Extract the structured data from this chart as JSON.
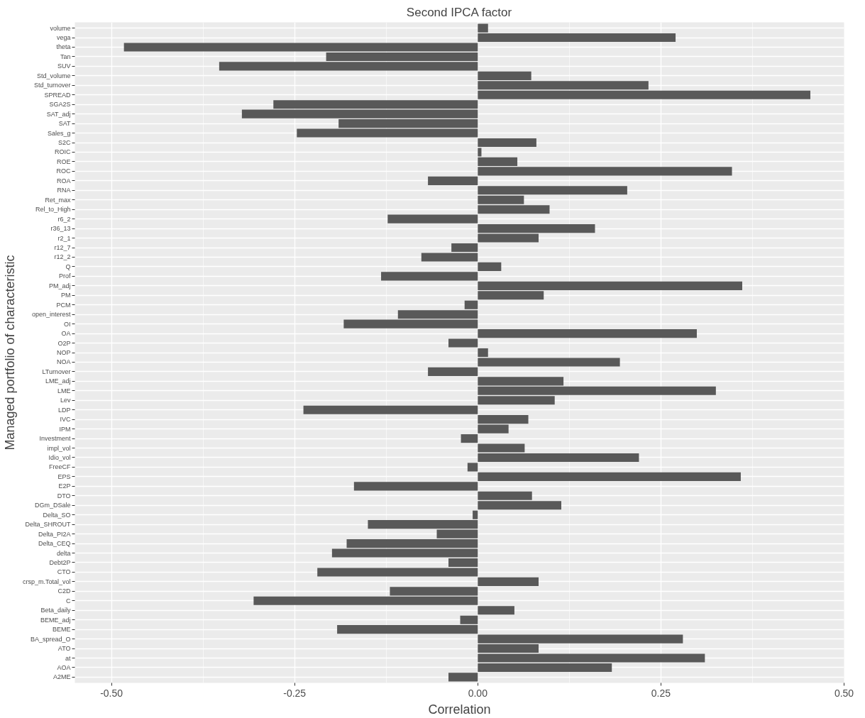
{
  "chart_data": {
    "type": "bar",
    "orientation": "horizontal",
    "title": "Second IPCA factor",
    "xlabel": "Correlation",
    "ylabel": "Managed portfolio of characteristic",
    "categories": [
      "volume",
      "vega",
      "theta",
      "Tan",
      "SUV",
      "Std_volume",
      "Std_turnover",
      "SPREAD",
      "SGA2S",
      "SAT_adj",
      "SAT",
      "Sales_g",
      "S2C",
      "ROIC",
      "ROE",
      "ROC",
      "ROA",
      "RNA",
      "Ret_max",
      "Rel_to_High",
      "r6_2",
      "r36_13",
      "r2_1",
      "r12_7",
      "r12_2",
      "Q",
      "Prof",
      "PM_adj",
      "PM",
      "PCM",
      "open_interest",
      "OI",
      "OA",
      "O2P",
      "NOP",
      "NOA",
      "LTurnover",
      "LME_adj",
      "LME",
      "Lev",
      "LDP",
      "IVC",
      "IPM",
      "Investment",
      "impl_vol",
      "Idio_vol",
      "FreeCF",
      "EPS",
      "E2P",
      "DTO",
      "DGm_DSale",
      "Delta_SO",
      "Delta_SHROUT",
      "Delta_PI2A",
      "Delta_CEQ",
      "delta",
      "Debt2P",
      "CTO",
      "crsp_m.Total_vol",
      "C2D",
      "C",
      "Beta_daily",
      "BEME_adj",
      "BEME",
      "BA_spread_O",
      "ATO",
      "at",
      "AOA",
      "A2ME"
    ],
    "values": [
      0.014,
      0.27,
      -0.483,
      -0.207,
      -0.353,
      0.073,
      0.233,
      0.454,
      -0.279,
      -0.322,
      -0.19,
      -0.247,
      0.08,
      0.005,
      0.054,
      0.347,
      -0.068,
      0.204,
      0.063,
      0.098,
      -0.123,
      0.16,
      0.083,
      -0.036,
      -0.077,
      0.032,
      -0.132,
      0.361,
      0.09,
      -0.018,
      -0.109,
      -0.183,
      0.299,
      -0.04,
      0.014,
      0.194,
      -0.068,
      0.117,
      0.325,
      0.105,
      -0.238,
      0.069,
      0.042,
      -0.023,
      0.064,
      0.22,
      -0.014,
      0.359,
      -0.169,
      0.074,
      0.114,
      -0.007,
      -0.15,
      -0.056,
      -0.179,
      -0.199,
      -0.04,
      -0.219,
      0.083,
      -0.12,
      -0.306,
      0.05,
      -0.024,
      -0.192,
      0.28,
      0.083,
      0.31,
      0.183,
      -0.04
    ],
    "color": "#595959",
    "xlim": [
      -0.55,
      0.5
    ],
    "xticks": [
      {
        "value": -0.5,
        "label": "-0.50"
      },
      {
        "value": -0.25,
        "label": "-0.25"
      },
      {
        "value": 0,
        "label": "0.00"
      },
      {
        "value": 0.25,
        "label": "0.25"
      },
      {
        "value": 0.5,
        "label": "0.50"
      }
    ],
    "grid": true
  }
}
